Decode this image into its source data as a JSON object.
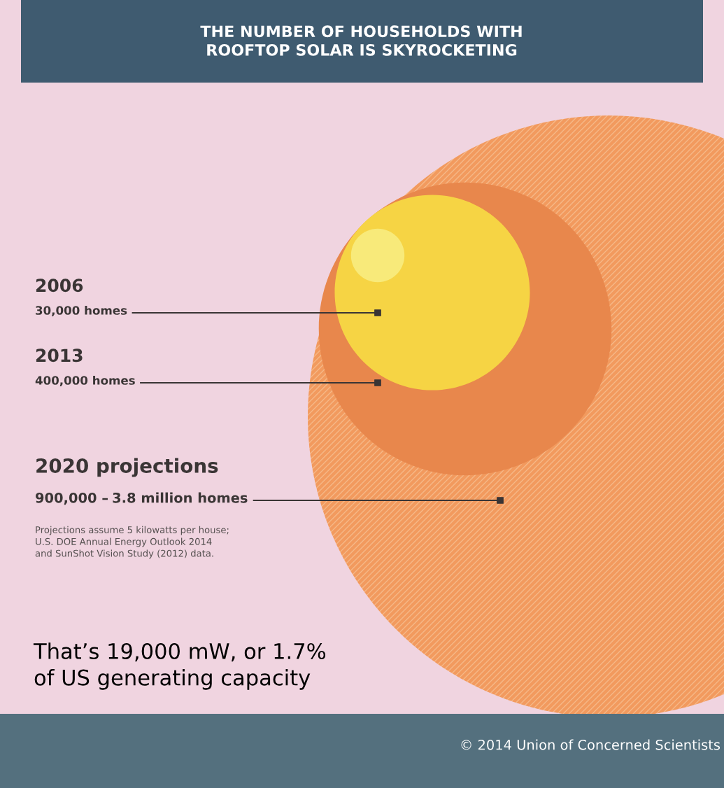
{
  "chart_data": {
    "type": "other",
    "title": "THE NUMBER OF HOUSEHOLDS WITH\nROOFTOP SOLAR IS SKYROCKETING",
    "categories": [
      "2006",
      "2013",
      "2020 projections",
      null
    ],
    "values": [
      30000,
      400000,
      900000,
      3800000
    ],
    "colors": [
      "#f8ea7a",
      "#f6d444",
      "#e8874c",
      "#f29a5e"
    ],
    "value_labels": [
      "30,000 homes",
      "400,000 homes",
      "900,000 –",
      "3.8 million homes"
    ],
    "annotations": [
      "Projections assume 5 kilowatts per house;\nU.S. DOE Annual Energy Outlook 2014\nand SunShot Vision Study (2012) data.",
      "That’s 19,000 mW, or 1.7%\nof US generating capacity",
      "© 2014 Union of Concerned Scientists"
    ]
  }
}
